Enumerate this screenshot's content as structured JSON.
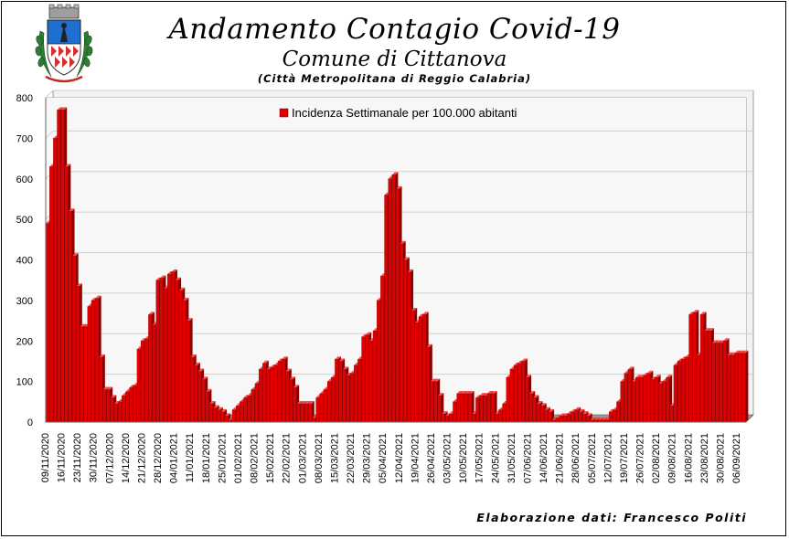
{
  "header": {
    "title": "Andamento Contagio Covid-19",
    "subtitle": "Comune di Cittanova",
    "region": "(Città Metropolitana di Reggio Calabria)"
  },
  "footer": {
    "credit": "Elaborazione dati: Francesco Politi"
  },
  "colors": {
    "bar_front": "#e00000",
    "bar_side": "#8a0000",
    "bar_top": "#ff4a4a",
    "wall": "#f2f2f2",
    "floor": "#9a9a9a",
    "grid": "#cfcfcf"
  },
  "chart_data": {
    "type": "bar",
    "title": "",
    "xlabel": "",
    "ylabel": "",
    "ylim": [
      0,
      800
    ],
    "yticks": [
      0,
      100,
      200,
      300,
      400,
      500,
      600,
      700,
      800
    ],
    "grid": true,
    "legend_position": "top-center",
    "xtick_labels": [
      "09/11/2020",
      "16/11/2020",
      "23/11/2020",
      "30/11/2020",
      "07/12/2020",
      "14/12/2020",
      "21/12/2020",
      "28/12/2020",
      "04/01/2021",
      "11/01/2021",
      "18/01/2021",
      "25/01/2021",
      "01/02/2021",
      "08/02/2021",
      "15/02/2021",
      "22/02/2021",
      "01/03/2021",
      "08/03/2021",
      "15/03/2021",
      "22/03/2021",
      "29/03/2021",
      "05/04/2021",
      "12/04/2021",
      "19/04/2021",
      "26/04/2021",
      "03/05/2021",
      "10/05/2021",
      "17/05/2021",
      "24/05/2021",
      "31/05/2021",
      "07/06/2021",
      "14/06/2021",
      "21/06/2021",
      "28/06/2021",
      "05/07/2021",
      "12/07/2021",
      "19/07/2021",
      "26/07/2021",
      "02/08/2021",
      "09/08/2021",
      "16/08/2021",
      "23/08/2021",
      "30/08/2021",
      "06/09/2021"
    ],
    "series": [
      {
        "name": "Incidenza Settimanale per 100.000 abitanti",
        "values": [
          490,
          630,
          700,
          770,
          770,
          630,
          520,
          410,
          335,
          235,
          235,
          285,
          300,
          305,
          160,
          80,
          80,
          60,
          45,
          50,
          65,
          75,
          85,
          90,
          180,
          200,
          205,
          265,
          240,
          350,
          355,
          330,
          365,
          370,
          350,
          325,
          300,
          250,
          160,
          140,
          125,
          105,
          75,
          45,
          35,
          30,
          25,
          15,
          5,
          30,
          40,
          50,
          60,
          65,
          80,
          95,
          130,
          145,
          130,
          135,
          140,
          150,
          155,
          125,
          105,
          85,
          45,
          45,
          45,
          45,
          10,
          60,
          70,
          80,
          100,
          110,
          155,
          150,
          130,
          115,
          120,
          140,
          155,
          210,
          215,
          200,
          225,
          300,
          360,
          560,
          600,
          610,
          575,
          440,
          400,
          370,
          275,
          245,
          260,
          265,
          185,
          100,
          100,
          65,
          20,
          15,
          20,
          50,
          70,
          70,
          70,
          70,
          20,
          60,
          65,
          65,
          70,
          70,
          20,
          30,
          45,
          110,
          130,
          140,
          145,
          150,
          110,
          70,
          60,
          45,
          40,
          30,
          25,
          5,
          10,
          15,
          15,
          20,
          25,
          30,
          25,
          20,
          15,
          5,
          5,
          5,
          5,
          5,
          25,
          30,
          50,
          100,
          120,
          130,
          100,
          110,
          110,
          115,
          120,
          105,
          110,
          95,
          100,
          110,
          40,
          140,
          150,
          155,
          160,
          265,
          270,
          165,
          265,
          225,
          225,
          195,
          195,
          195,
          200,
          165,
          165,
          170,
          170,
          170
        ]
      }
    ]
  }
}
